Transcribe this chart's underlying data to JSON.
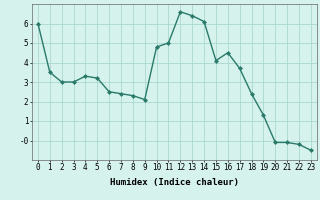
{
  "x": [
    0,
    1,
    2,
    3,
    4,
    5,
    6,
    7,
    8,
    9,
    10,
    11,
    12,
    13,
    14,
    15,
    16,
    17,
    18,
    19,
    20,
    21,
    22,
    23
  ],
  "y": [
    6.0,
    3.5,
    3.0,
    3.0,
    3.3,
    3.2,
    2.5,
    2.4,
    2.3,
    2.1,
    4.8,
    5.0,
    6.6,
    6.4,
    6.1,
    4.1,
    4.5,
    3.7,
    2.4,
    1.3,
    -0.1,
    -0.1,
    -0.2,
    -0.5
  ],
  "line_color": "#2a7a6a",
  "marker": "D",
  "marker_size": 2.0,
  "linewidth": 1.0,
  "background_color": "#d5f2ed",
  "grid_color": "#aad8d0",
  "xlabel": "Humidex (Indice chaleur)",
  "xlabel_fontsize": 6.5,
  "tick_fontsize": 5.5,
  "ylim": [
    -1.0,
    7.0
  ],
  "xlim": [
    -0.5,
    23.5
  ],
  "ytick_labels": [
    "-0",
    "1",
    "2",
    "3",
    "4",
    "5",
    "6"
  ],
  "ytick_vals": [
    0,
    1,
    2,
    3,
    4,
    5,
    6
  ],
  "xtick_labels": [
    "0",
    "1",
    "2",
    "3",
    "4",
    "5",
    "6",
    "7",
    "8",
    "9",
    "10",
    "11",
    "12",
    "13",
    "14",
    "15",
    "16",
    "17",
    "18",
    "19",
    "20",
    "21",
    "22",
    "23"
  ]
}
